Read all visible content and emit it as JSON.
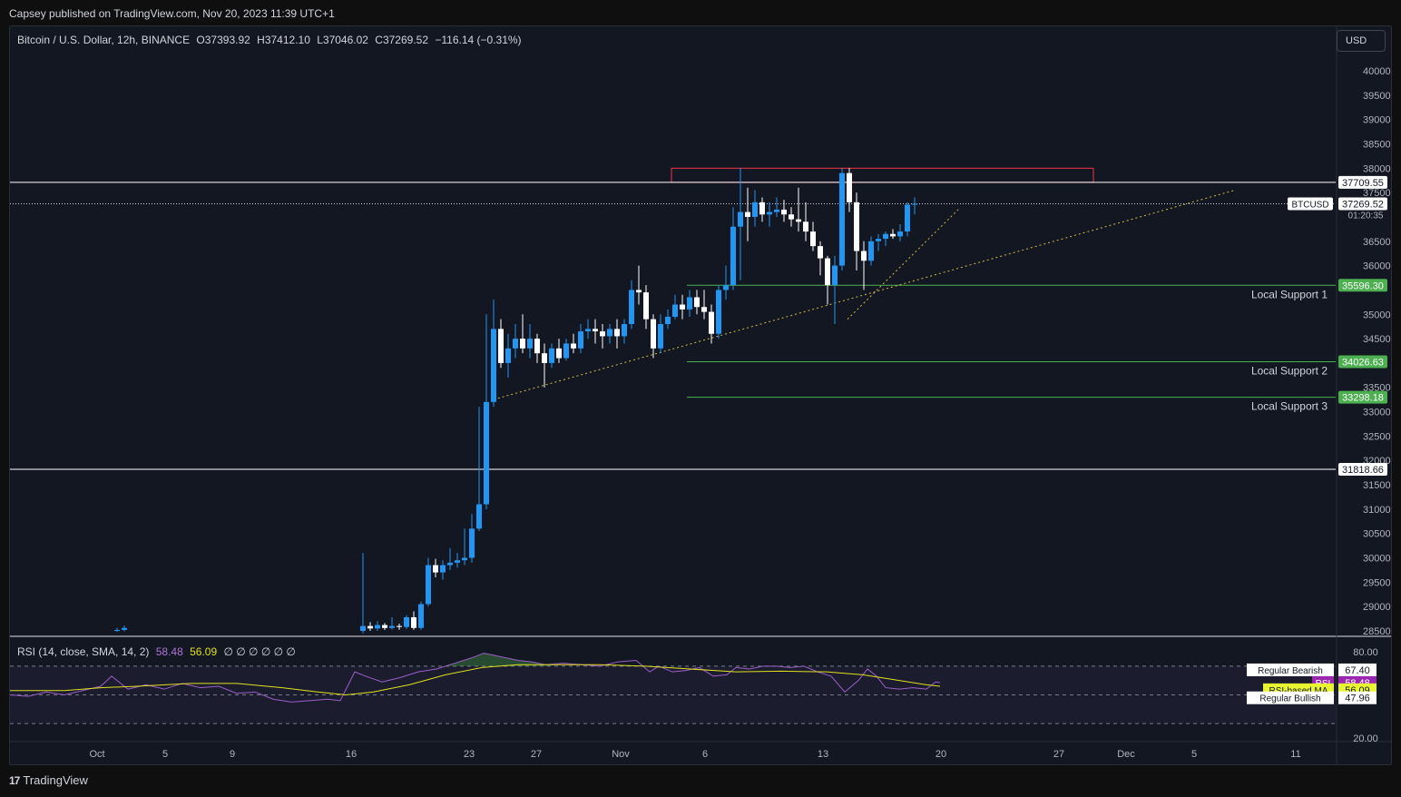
{
  "header": {
    "published": "Capsey published on TradingView.com, Nov 20, 2023 11:39 UTC+1"
  },
  "legend": {
    "symbol": "Bitcoin / U.S. Dollar, 12h, BINANCE",
    "open": "O37393.92",
    "high": "H37412.10",
    "low": "L37046.02",
    "close": "C37269.52",
    "change": "−116.14 (−0.31%)"
  },
  "currency": "USD",
  "price_axis": {
    "ticks": [
      "40000.00",
      "39500.00",
      "39000.00",
      "38500.00",
      "38000.00",
      "37500.00",
      "36500.00",
      "36000.00",
      "35000.00",
      "34500.00",
      "33500.00",
      "33000.00",
      "32500.00",
      "32000.00",
      "31500.00",
      "31000.00",
      "30500.00",
      "30000.00",
      "29500.00",
      "29000.00",
      "28500.00"
    ],
    "tick_values": [
      40000,
      39500,
      39000,
      38500,
      38000,
      37500,
      36500,
      36000,
      35000,
      34500,
      33500,
      33000,
      32500,
      32000,
      31500,
      31000,
      30500,
      30000,
      29500,
      29000,
      28500
    ],
    "labels": [
      {
        "text": "37709.55",
        "value": 37709.55,
        "style": "white"
      },
      {
        "text": "37269.52",
        "value": 37269.52,
        "style": "current"
      },
      {
        "text": "01:20:35",
        "value": 37269.52,
        "style": "countdown"
      },
      {
        "text": "35596.30",
        "value": 35596.3,
        "style": "green"
      },
      {
        "text": "34026.63",
        "value": 34026.63,
        "style": "green"
      },
      {
        "text": "33298.18",
        "value": 33298.18,
        "style": "green"
      },
      {
        "text": "31818.66",
        "value": 31818.66,
        "style": "white"
      }
    ],
    "symbol_tag": "BTCUSD"
  },
  "drawings": {
    "resistance_zone": {
      "top": 38000,
      "bottom": 37709.55,
      "color": "#f23645"
    },
    "horizontal_lines": [
      {
        "value": 37709.55,
        "color": "#ffffff"
      },
      {
        "value": 31818.66,
        "color": "#ffffff"
      }
    ],
    "supports": [
      {
        "label": "Local Support 1",
        "value": 35596.3,
        "color": "#4caf50"
      },
      {
        "label": "Local Support 2",
        "value": 34026.63,
        "color": "#4caf50"
      },
      {
        "label": "Local Support 3",
        "value": 33298.18,
        "color": "#4caf50"
      }
    ]
  },
  "time_axis": {
    "ticks": [
      "Oct",
      "5",
      "9",
      "16",
      "23",
      "27",
      "Nov",
      "6",
      "13",
      "20",
      "27",
      "Dec",
      "5",
      "11"
    ]
  },
  "rsi": {
    "legend": "RSI (14, close, SMA, 14, 2)",
    "rsi_value": "58.48",
    "ma_value": "56.09",
    "null_marks": "∅ ∅ ∅ ∅ ∅ ∅",
    "axis_ticks": [
      "80.00",
      "20.00"
    ],
    "labels": [
      {
        "name": "Regular Bearish",
        "value": "67.40",
        "style": "white"
      },
      {
        "name": "RSI",
        "value": "58.48",
        "style": "purple"
      },
      {
        "name": "RSI-based MA",
        "value": "56.09",
        "style": "yellow"
      },
      {
        "name": "Regular Bullish",
        "value": "47.96",
        "style": "white"
      }
    ],
    "colors": {
      "rsi": "#9c5fc8",
      "ma": "#e0e020",
      "band": "#7e57c2"
    }
  },
  "footer": {
    "brand": "TradingView"
  },
  "colors": {
    "up": "#2196f3",
    "down": "#ffffff",
    "background": "#131722",
    "text": "#d1d4dc"
  }
}
